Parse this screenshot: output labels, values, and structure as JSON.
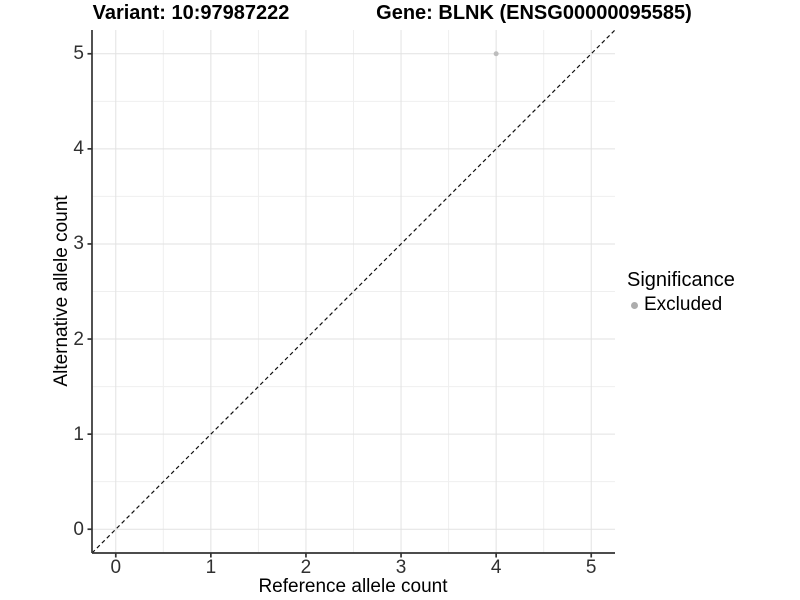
{
  "figure": {
    "background": "#ffffff"
  },
  "chart_data": {
    "type": "scatter",
    "titles": {
      "left": "Variant: 10:97987222",
      "right": "Gene: BLNK (ENSG00000095585)"
    },
    "xlabel": "Reference allele count",
    "ylabel": "Alternative allele count",
    "xlim": [
      -0.25,
      5.25
    ],
    "ylim": [
      -0.25,
      5.25
    ],
    "x_ticks": [
      0,
      1,
      2,
      3,
      4,
      5
    ],
    "y_ticks": [
      0,
      1,
      2,
      3,
      4,
      5
    ],
    "x_minor_ticks": [
      0.5,
      1.5,
      2.5,
      3.5,
      4.5
    ],
    "y_minor_ticks": [
      0.5,
      1.5,
      2.5,
      3.5,
      4.5
    ],
    "grid": {
      "show": true,
      "major_color": "#e2e2e2",
      "minor_color": "#efefef"
    },
    "axis": {
      "line_color": "#333333",
      "tick_color": "#333333",
      "tick_label_color": "#303030"
    },
    "identity_line": {
      "style": "dashed",
      "color": "#111111",
      "x1": -0.25,
      "y1": -0.25,
      "x2": 5.25,
      "y2": 5.25
    },
    "series": [
      {
        "name": "Excluded",
        "color": "#bdbdbd",
        "points": [
          {
            "x": 4,
            "y": 5
          }
        ]
      }
    ],
    "legend": {
      "title": "Significance",
      "position": "right",
      "items": [
        {
          "label": "Excluded",
          "color": "#adadad"
        }
      ]
    }
  }
}
